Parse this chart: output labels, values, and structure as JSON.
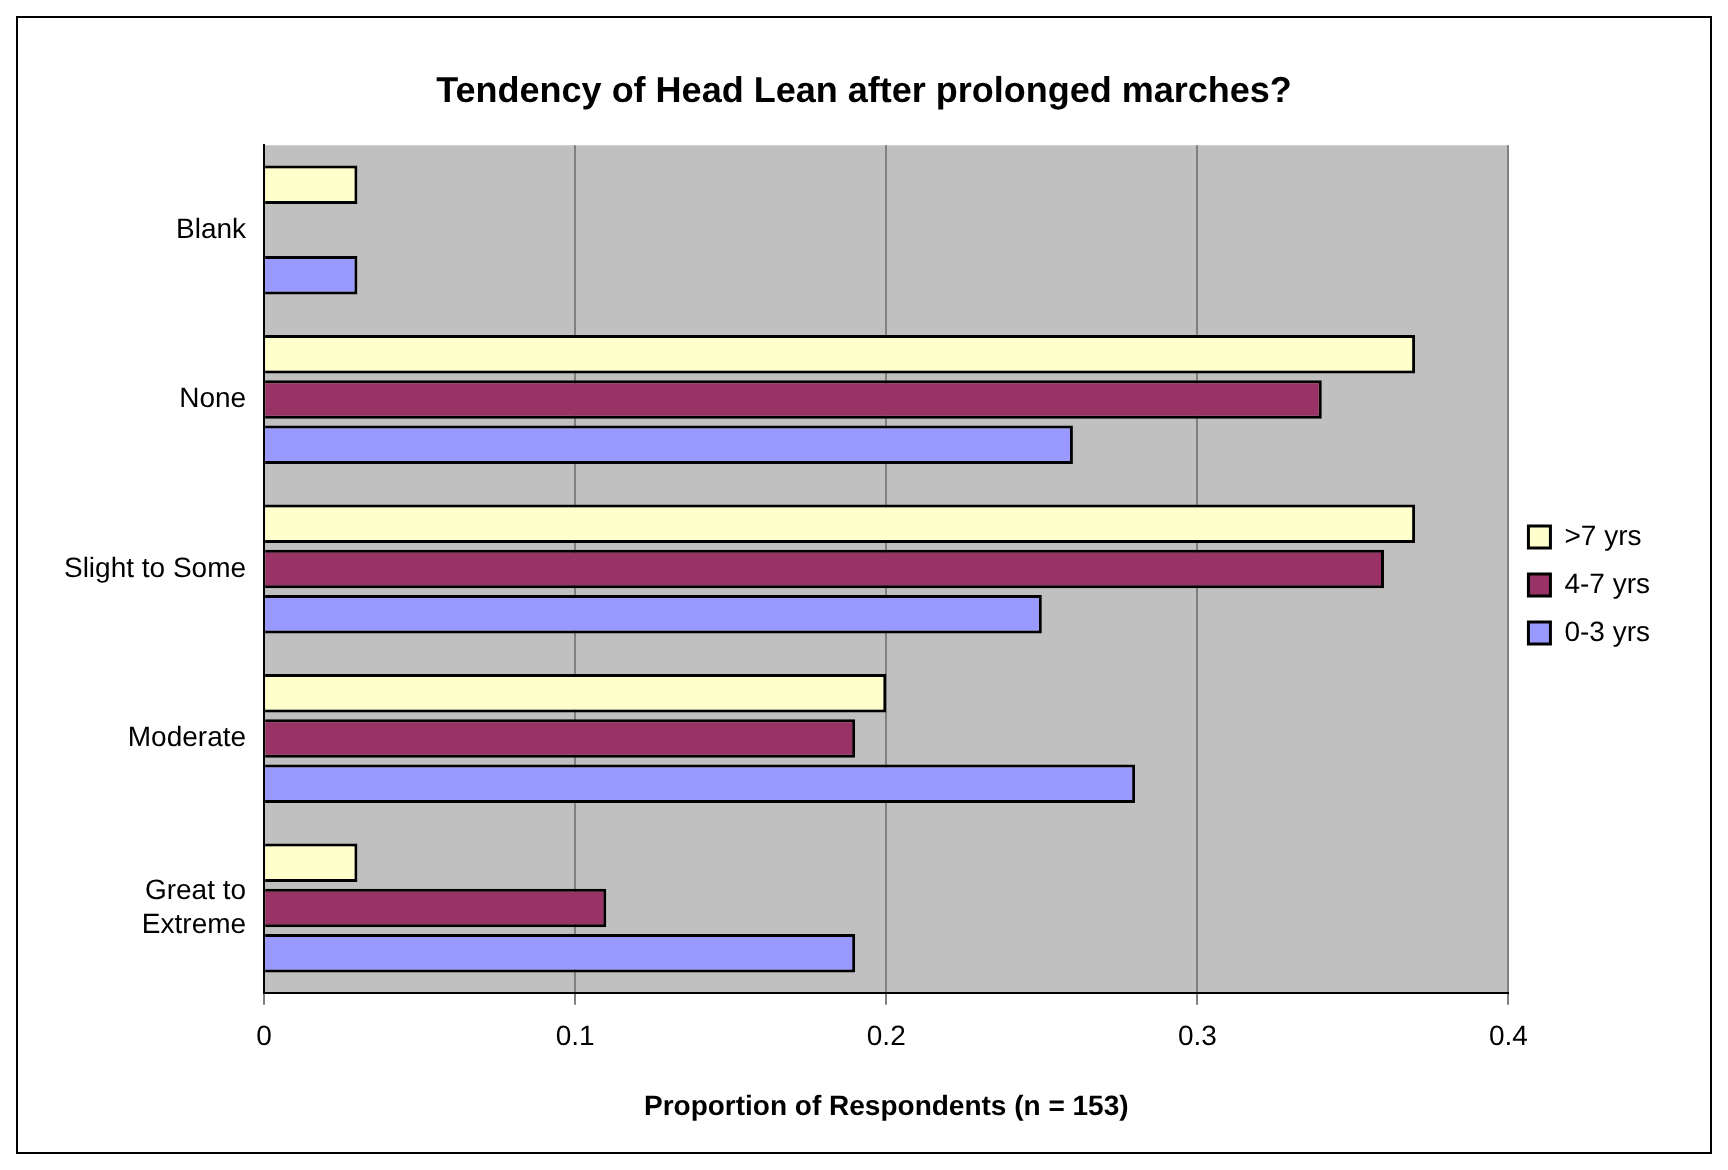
{
  "chart_data": {
    "type": "bar",
    "orientation": "horizontal",
    "title": "Tendency of Head Lean after prolonged marches?",
    "xlabel": "Proportion of Respondents (n = 153)",
    "categories": [
      "Blank",
      "None",
      "Slight to Some",
      "Moderate",
      "Great to\nExtreme"
    ],
    "series": [
      {
        "name": ">7 yrs",
        "color": "#ffffcc",
        "values": [
          0.03,
          0.37,
          0.37,
          0.2,
          0.03
        ]
      },
      {
        "name": "4-7 yrs",
        "color": "#993366",
        "values": [
          0,
          0.34,
          0.36,
          0.19,
          0.11
        ]
      },
      {
        "name": "0-3 yrs",
        "color": "#9999ff",
        "values": [
          0.03,
          0.26,
          0.25,
          0.28,
          0.19
        ]
      }
    ],
    "xlim": [
      0,
      0.4
    ],
    "xticks": [
      0,
      0.1,
      0.2,
      0.3,
      0.4
    ],
    "grid": "x",
    "legend": "right"
  }
}
